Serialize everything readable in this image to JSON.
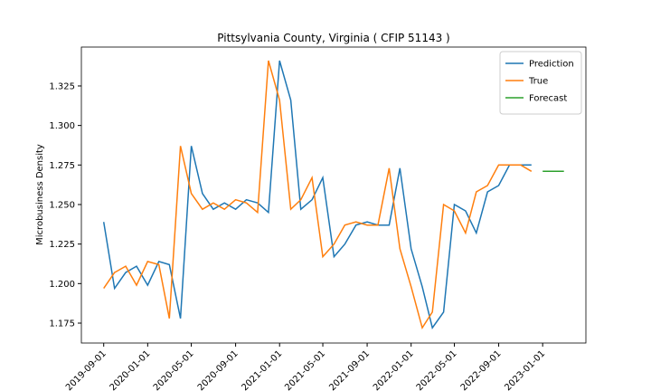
{
  "chart_data": {
    "type": "line",
    "title": "Pittsylvania County, Virginia ( CFIP 51143 )",
    "ylabel": "Microbusiness Density",
    "x": [
      "2019-09-01",
      "2019-10-01",
      "2019-11-01",
      "2019-12-01",
      "2020-01-01",
      "2020-02-01",
      "2020-03-01",
      "2020-04-01",
      "2020-05-01",
      "2020-06-01",
      "2020-07-01",
      "2020-08-01",
      "2020-09-01",
      "2020-10-01",
      "2020-11-01",
      "2020-12-01",
      "2021-01-01",
      "2021-02-01",
      "2021-03-01",
      "2021-04-01",
      "2021-05-01",
      "2021-06-01",
      "2021-07-01",
      "2021-08-01",
      "2021-09-01",
      "2021-10-01",
      "2021-11-01",
      "2021-12-01",
      "2022-01-01",
      "2022-02-01",
      "2022-03-01",
      "2022-04-01",
      "2022-05-01",
      "2022-06-01",
      "2022-07-01",
      "2022-08-01",
      "2022-09-01",
      "2022-10-01",
      "2022-11-01",
      "2022-12-01"
    ],
    "series": [
      {
        "name": "Prediction",
        "color": "#1f77b4",
        "values": [
          1.239,
          1.197,
          1.207,
          1.211,
          1.199,
          1.214,
          1.212,
          1.178,
          1.287,
          1.257,
          1.247,
          1.251,
          1.247,
          1.253,
          1.251,
          1.245,
          1.341,
          1.316,
          1.247,
          1.253,
          1.267,
          1.217,
          1.225,
          1.237,
          1.239,
          1.237,
          1.237,
          1.273,
          1.222,
          1.198,
          1.172,
          1.182,
          1.25,
          1.246,
          1.232,
          1.258,
          1.262,
          1.275,
          1.275,
          1.275
        ]
      },
      {
        "name": "True",
        "color": "#ff7f0e",
        "values": [
          1.197,
          1.207,
          1.211,
          1.199,
          1.214,
          1.212,
          1.178,
          1.287,
          1.257,
          1.247,
          1.251,
          1.247,
          1.253,
          1.251,
          1.245,
          1.341,
          1.316,
          1.247,
          1.253,
          1.267,
          1.217,
          1.225,
          1.237,
          1.239,
          1.237,
          1.237,
          1.273,
          1.222,
          1.198,
          1.172,
          1.182,
          1.25,
          1.246,
          1.232,
          1.258,
          1.262,
          1.275,
          1.275,
          1.275,
          1.271
        ]
      },
      {
        "name": "Forecast",
        "color": "#2ca02c",
        "x": [
          "2023-01-01",
          "2023-02-01",
          "2023-03-01"
        ],
        "values": [
          1.271,
          1.271,
          1.271
        ]
      }
    ],
    "xlim": [
      "2019-07-01",
      "2023-05-01"
    ],
    "xticks": [
      "2019-09-01",
      "2020-01-01",
      "2020-05-01",
      "2020-09-01",
      "2021-01-01",
      "2021-05-01",
      "2021-09-01",
      "2022-01-01",
      "2022-05-01",
      "2022-09-01",
      "2023-01-01"
    ],
    "ylim": [
      1.1624,
      1.3496
    ],
    "yticks": [
      1.175,
      {
        "value": 1.2,
        "label": "1.200"
      },
      1.225,
      {
        "value": 1.25,
        "label": "1.250"
      },
      1.275,
      {
        "value": 1.3,
        "label": "1.300"
      },
      1.325
    ],
    "legend": "upper right"
  }
}
